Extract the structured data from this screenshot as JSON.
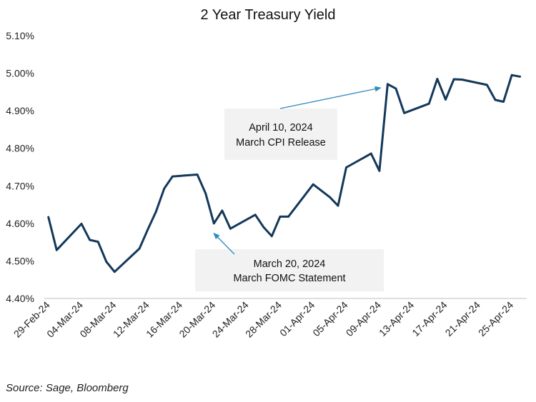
{
  "chart_data": {
    "type": "line",
    "title": "2 Year Treasury Yield",
    "xlabel": "",
    "ylabel": "",
    "ylim": [
      4.4,
      5.1
    ],
    "y_ticks": [
      "4.40%",
      "4.50%",
      "4.60%",
      "4.70%",
      "4.80%",
      "4.90%",
      "5.00%",
      "5.10%"
    ],
    "x_ticks": [
      "29-Feb-24",
      "04-Mar-24",
      "08-Mar-24",
      "12-Mar-24",
      "16-Mar-24",
      "20-Mar-24",
      "24-Mar-24",
      "28-Mar-24",
      "01-Apr-24",
      "05-Apr-24",
      "09-Apr-24",
      "13-Apr-24",
      "17-Apr-24",
      "21-Apr-24",
      "25-Apr-24"
    ],
    "x_tick_days": [
      0,
      4,
      8,
      12,
      16,
      20,
      24,
      28,
      32,
      36,
      40,
      44,
      48,
      52,
      56
    ],
    "x_day_range": [
      0,
      57
    ],
    "grid": false,
    "series": [
      {
        "name": "2 Year Treasury Yield",
        "color": "#13385a",
        "days": [
          0,
          1,
          4,
          5,
          6,
          7,
          8,
          11,
          12,
          13,
          14,
          15,
          18,
          19,
          20,
          21,
          22,
          25,
          26,
          27,
          28,
          29,
          32,
          34,
          35,
          36,
          39,
          40,
          41,
          42,
          43,
          46,
          47,
          48,
          49,
          50,
          53,
          54,
          55,
          56,
          57
        ],
        "values": [
          4.617,
          4.529,
          4.599,
          4.556,
          4.551,
          4.498,
          4.471,
          4.533,
          4.583,
          4.631,
          4.693,
          4.725,
          4.73,
          4.68,
          4.6,
          4.634,
          4.586,
          4.623,
          4.59,
          4.566,
          4.618,
          4.618,
          4.704,
          4.67,
          4.647,
          4.749,
          4.786,
          4.74,
          4.971,
          4.959,
          4.894,
          4.919,
          4.985,
          4.93,
          4.984,
          4.983,
          4.969,
          4.929,
          4.924,
          4.995,
          4.991
        ]
      }
    ],
    "annotations": [
      {
        "line1": "April 10, 2024",
        "line2": "March CPI Release",
        "target_day": 41,
        "target_value": 4.965
      },
      {
        "line1": "March 20, 2024",
        "line2": "March FOMC Statement",
        "target_day": 20,
        "target_value": 4.585
      }
    ],
    "annotation_color": "#2e8bc0",
    "source": "Source: Sage, Bloomberg"
  }
}
